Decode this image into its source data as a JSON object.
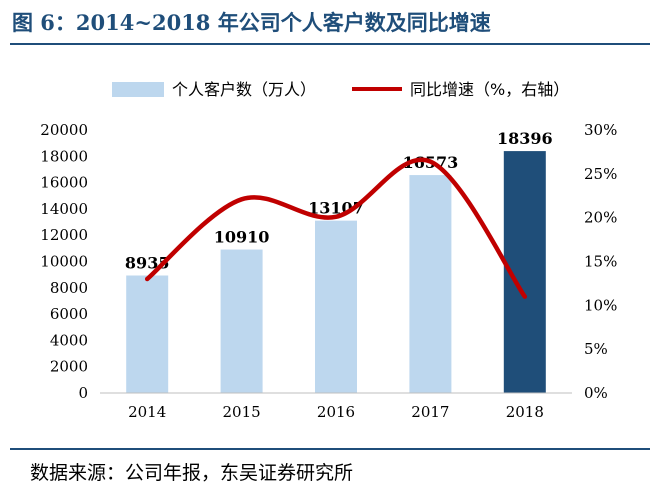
{
  "title": "图 6：2014~2018 年公司个人客户数及同比增速",
  "source": "数据来源：公司年报，东吴证券研究所",
  "colors": {
    "bar": "#bdd7ee",
    "bar_highlight": "#1f4e79",
    "line": "#c00000",
    "axis": "#bfbfbf",
    "text": "#000000",
    "title": "#1f4e7a"
  },
  "chart_data": {
    "type": "bar",
    "categories": [
      "2014",
      "2015",
      "2016",
      "2017",
      "2018"
    ],
    "series": [
      {
        "name": "个人客户数（万人）",
        "type": "bar",
        "axis": "left",
        "values": [
          8935,
          10910,
          13107,
          16573,
          18396
        ],
        "data_labels": [
          "8935",
          "10910",
          "13107",
          "16573",
          "18396"
        ],
        "highlight_index": 4
      },
      {
        "name": "同比增速（%，右轴）",
        "type": "line",
        "smooth": true,
        "axis": "right",
        "values": [
          13.0,
          22.1,
          20.1,
          26.4,
          11.0
        ]
      }
    ],
    "ylim": [
      0,
      20000
    ],
    "yticks": [
      "0",
      "2000",
      "4000",
      "6000",
      "8000",
      "10000",
      "12000",
      "14000",
      "16000",
      "18000",
      "20000"
    ],
    "y2lim": [
      0,
      30
    ],
    "y2ticks": [
      "0%",
      "5%",
      "10%",
      "15%",
      "20%",
      "25%",
      "30%"
    ],
    "legend": "top",
    "grid": false
  }
}
